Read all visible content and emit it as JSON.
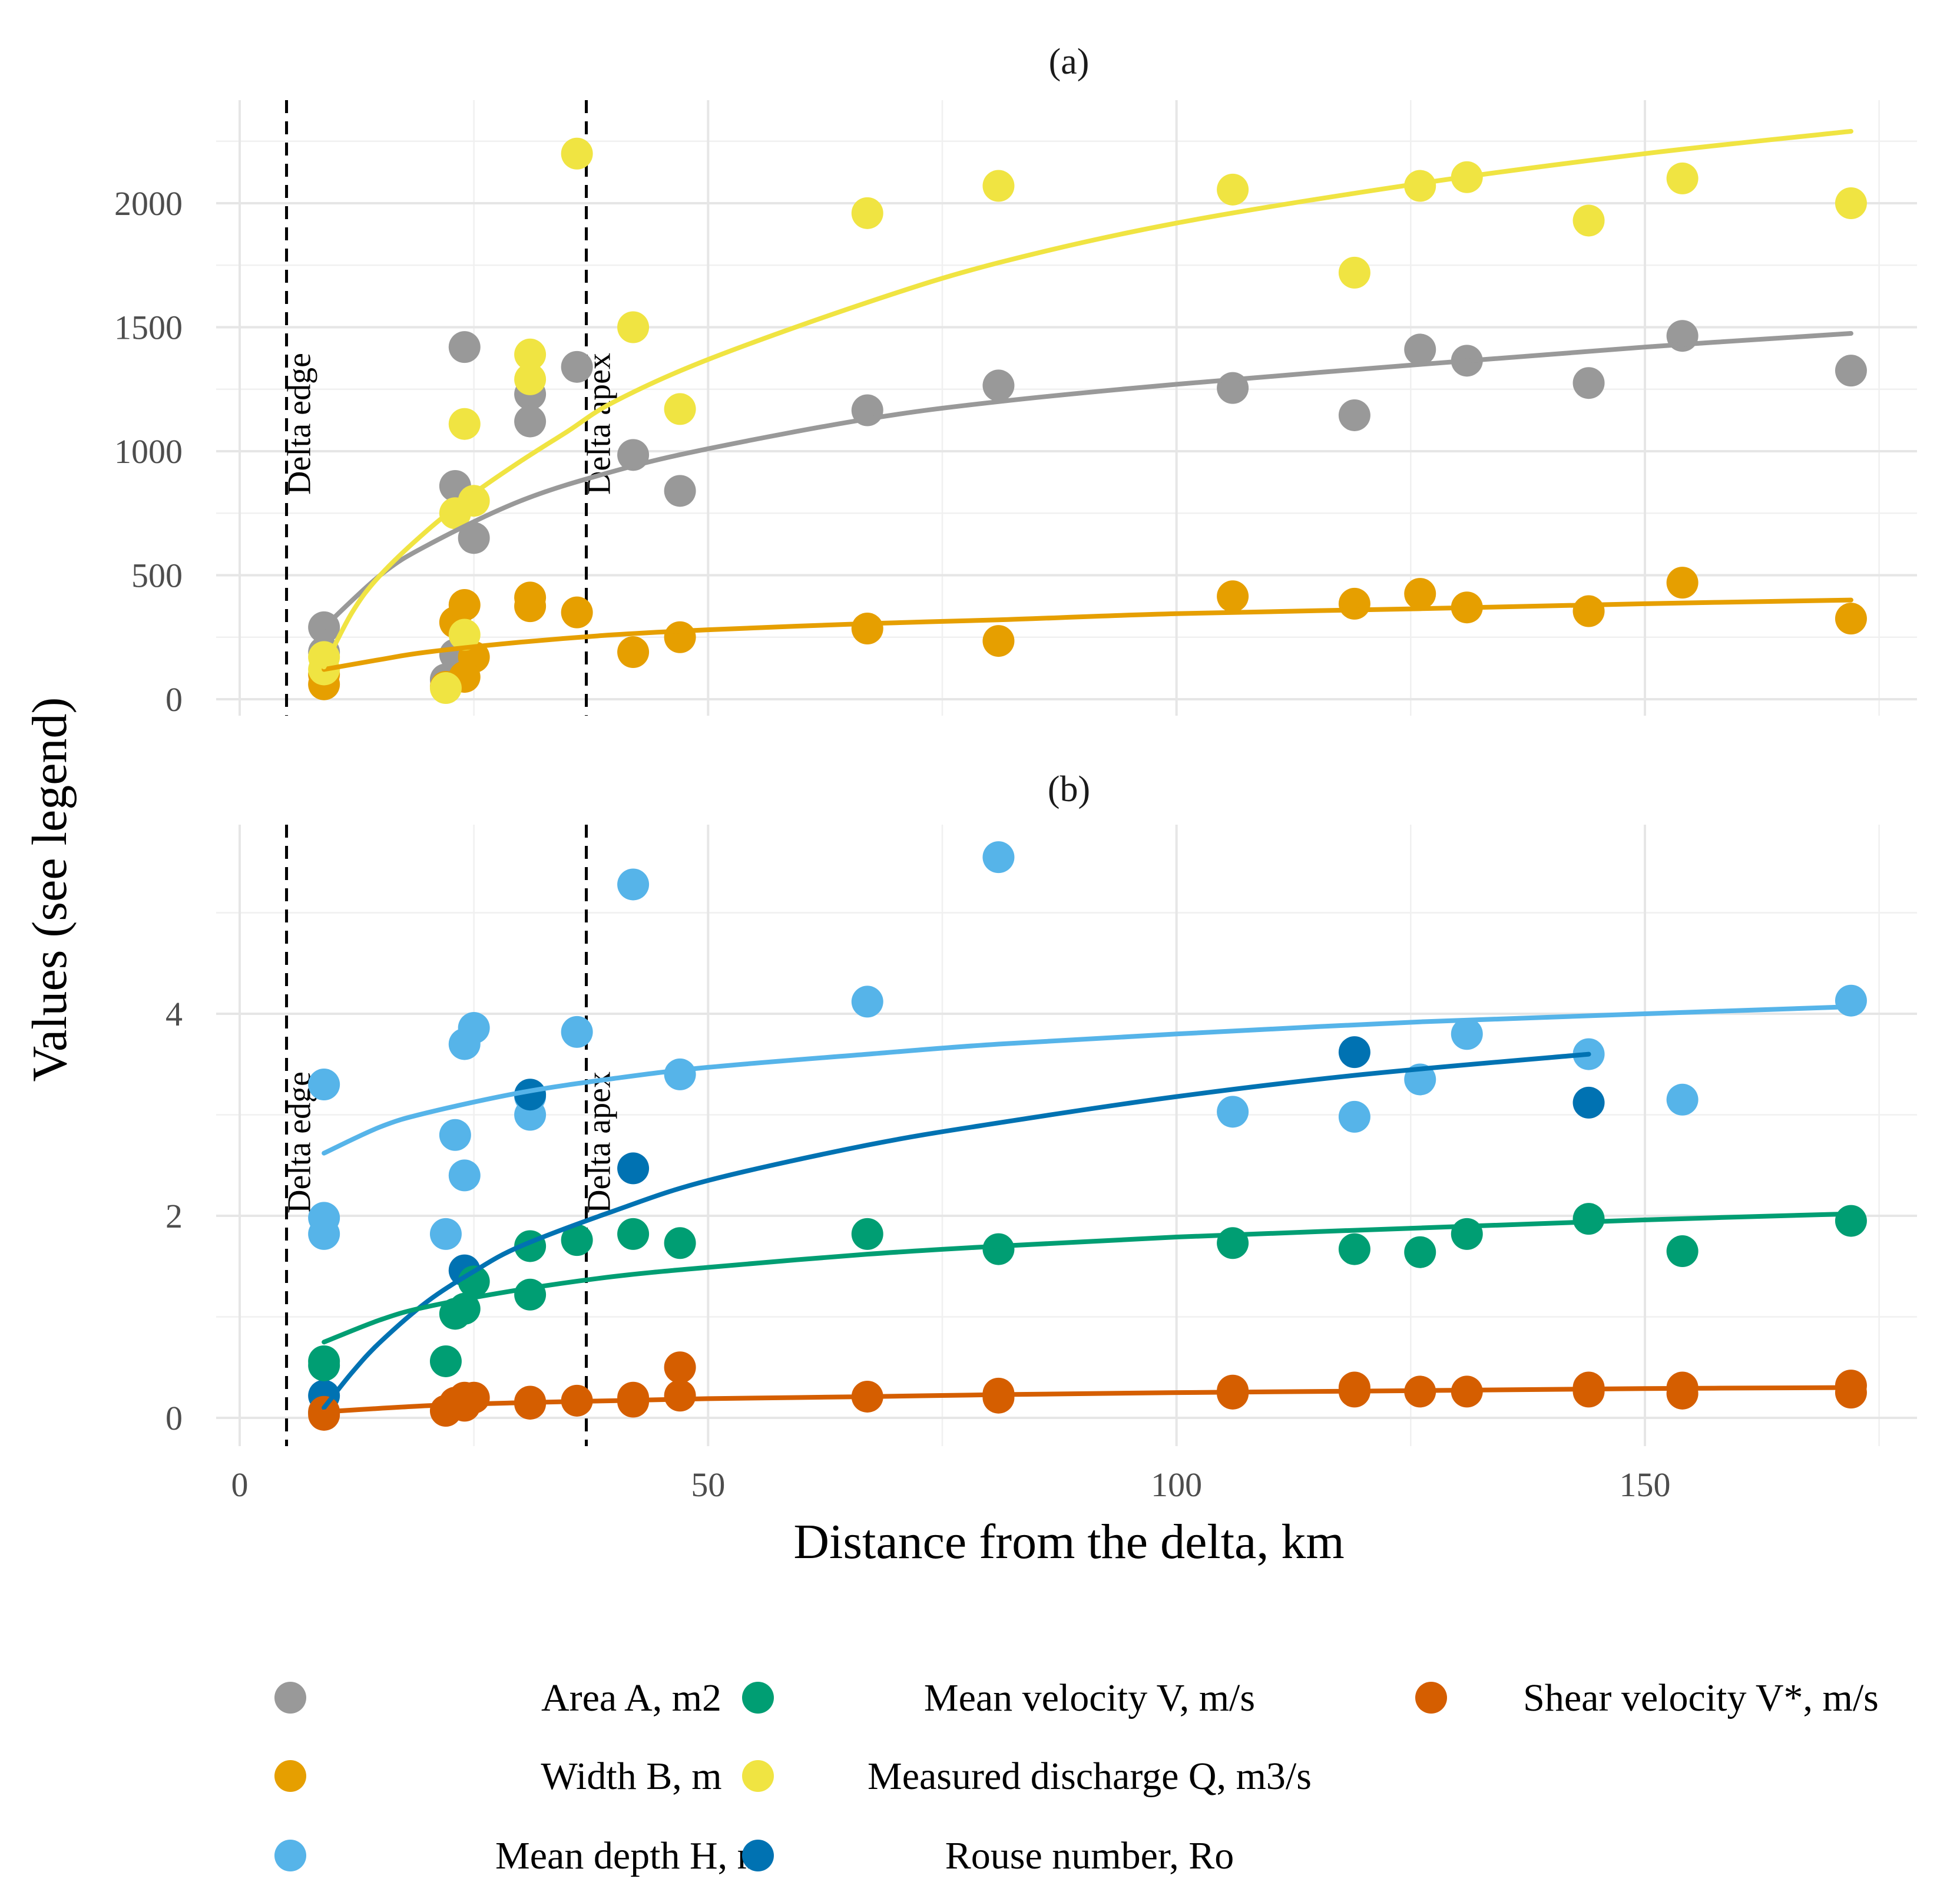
{
  "chart_data": [
    {
      "type": "scatter",
      "panel": "(a)",
      "title": "(a)",
      "xlabel": "Distance from the delta, km",
      "ylabel": "Values (see legend)",
      "xlim": [
        0,
        175
      ],
      "ylim": [
        0,
        2300
      ],
      "xticks": [
        0,
        50,
        100,
        150
      ],
      "yticks": [
        0,
        500,
        1000,
        1500,
        2000
      ],
      "vlines": [
        {
          "x": 5,
          "label": "Delta edge"
        },
        {
          "x": 37,
          "label": "Delta apex"
        }
      ],
      "series": [
        {
          "name": "Area A, m2",
          "color": "#999999",
          "points": [
            [
              9,
              290
            ],
            [
              9,
              190
            ],
            [
              22,
              80
            ],
            [
              23,
              860
            ],
            [
              24,
              1420
            ],
            [
              25,
              650
            ],
            [
              23,
              180
            ],
            [
              31,
              1230
            ],
            [
              31,
              1120
            ],
            [
              36,
              1340
            ],
            [
              42,
              985
            ],
            [
              47,
              840
            ],
            [
              67,
              1165
            ],
            [
              81,
              1265
            ],
            [
              106,
              1255
            ],
            [
              119,
              1145
            ],
            [
              126,
              1410
            ],
            [
              131,
              1365
            ],
            [
              144,
              1275
            ],
            [
              154,
              1465
            ],
            [
              172,
              1325
            ]
          ],
          "fit": [
            [
              9,
              290
            ],
            [
              15,
              500
            ],
            [
              20,
              620
            ],
            [
              30,
              800
            ],
            [
              40,
              920
            ],
            [
              50,
              1010
            ],
            [
              67,
              1130
            ],
            [
              81,
              1200
            ],
            [
              100,
              1270
            ],
            [
              126,
              1350
            ],
            [
              150,
              1420
            ],
            [
              172,
              1475
            ]
          ]
        },
        {
          "name": "Width B, m",
          "color": "#E69F00",
          "points": [
            [
              9,
              60
            ],
            [
              9,
              100
            ],
            [
              22,
              50
            ],
            [
              23,
              310
            ],
            [
              24,
              380
            ],
            [
              25,
              170
            ],
            [
              24,
              90
            ],
            [
              31,
              410
            ],
            [
              31,
              375
            ],
            [
              36,
              350
            ],
            [
              42,
              190
            ],
            [
              47,
              250
            ],
            [
              67,
              285
            ],
            [
              81,
              235
            ],
            [
              106,
              415
            ],
            [
              119,
              385
            ],
            [
              126,
              425
            ],
            [
              131,
              370
            ],
            [
              144,
              355
            ],
            [
              154,
              470
            ],
            [
              172,
              325
            ]
          ],
          "fit": [
            [
              9,
              120
            ],
            [
              15,
              160
            ],
            [
              20,
              190
            ],
            [
              30,
              230
            ],
            [
              40,
              260
            ],
            [
              50,
              280
            ],
            [
              67,
              305
            ],
            [
              81,
              320
            ],
            [
              100,
              345
            ],
            [
              126,
              365
            ],
            [
              150,
              385
            ],
            [
              172,
              400
            ]
          ]
        },
        {
          "name": "Measured discharge Q, m3/s",
          "color": "#F0E442",
          "points": [
            [
              9,
              170
            ],
            [
              9,
              120
            ],
            [
              22,
              45
            ],
            [
              23,
              750
            ],
            [
              24,
              1110
            ],
            [
              25,
              800
            ],
            [
              24,
              260
            ],
            [
              31,
              1390
            ],
            [
              31,
              1290
            ],
            [
              36,
              2200
            ],
            [
              42,
              1500
            ],
            [
              47,
              1170
            ],
            [
              67,
              1960
            ],
            [
              81,
              2070
            ],
            [
              106,
              2055
            ],
            [
              119,
              1720
            ],
            [
              126,
              2070
            ],
            [
              131,
              2105
            ],
            [
              144,
              1930
            ],
            [
              154,
              2100
            ],
            [
              172,
              2000
            ]
          ],
          "fit": [
            [
              9,
              130
            ],
            [
              12,
              350
            ],
            [
              15,
              500
            ],
            [
              20,
              680
            ],
            [
              25,
              830
            ],
            [
              30,
              960
            ],
            [
              35,
              1080
            ],
            [
              40,
              1200
            ],
            [
              50,
              1370
            ],
            [
              67,
              1600
            ],
            [
              81,
              1760
            ],
            [
              100,
              1920
            ],
            [
              126,
              2080
            ],
            [
              150,
              2200
            ],
            [
              172,
              2290
            ]
          ]
        }
      ]
    },
    {
      "type": "scatter",
      "panel": "(b)",
      "title": "(b)",
      "xlabel": "Distance from the delta, km",
      "ylabel": "Values (see legend)",
      "xlim": [
        0,
        175
      ],
      "ylim": [
        -0.2,
        6.0
      ],
      "xticks": [
        0,
        50,
        100,
        150
      ],
      "yticks": [
        0,
        2,
        4
      ],
      "vlines": [
        {
          "x": 5,
          "label": "Delta edge"
        },
        {
          "x": 37,
          "label": "Delta apex"
        }
      ],
      "series": [
        {
          "name": "Mean depth H, m",
          "color": "#56B4E9",
          "points": [
            [
              9,
              3.3
            ],
            [
              9,
              1.98
            ],
            [
              9,
              1.82
            ],
            [
              22,
              1.82
            ],
            [
              23,
              2.8
            ],
            [
              24,
              3.7
            ],
            [
              25,
              3.86
            ],
            [
              24,
              2.4
            ],
            [
              31,
              3.0
            ],
            [
              31,
              3.18
            ],
            [
              36,
              3.82
            ],
            [
              42,
              5.28
            ],
            [
              47,
              3.4
            ],
            [
              67,
              4.12
            ],
            [
              81,
              5.55
            ],
            [
              106,
              3.03
            ],
            [
              119,
              2.98
            ],
            [
              126,
              3.35
            ],
            [
              131,
              3.8
            ],
            [
              144,
              3.6
            ],
            [
              154,
              3.15
            ],
            [
              172,
              4.13
            ]
          ],
          "fit": [
            [
              9,
              2.62
            ],
            [
              15,
              2.88
            ],
            [
              20,
              3.02
            ],
            [
              30,
              3.22
            ],
            [
              40,
              3.36
            ],
            [
              50,
              3.47
            ],
            [
              67,
              3.6
            ],
            [
              81,
              3.7
            ],
            [
              100,
              3.8
            ],
            [
              126,
              3.92
            ],
            [
              150,
              4.0
            ],
            [
              172,
              4.07
            ]
          ]
        },
        {
          "name": "Rouse number, Ro",
          "color": "#0072B2",
          "points": [
            [
              9,
              0.22
            ],
            [
              9,
              0.05
            ],
            [
              24,
              1.46
            ],
            [
              31,
              3.2
            ],
            [
              42,
              2.47
            ],
            [
              119,
              3.62
            ],
            [
              144,
              3.12
            ]
          ],
          "fit": [
            [
              9,
              0.1
            ],
            [
              12,
              0.45
            ],
            [
              15,
              0.75
            ],
            [
              20,
              1.15
            ],
            [
              25,
              1.45
            ],
            [
              30,
              1.7
            ],
            [
              40,
              2.05
            ],
            [
              50,
              2.35
            ],
            [
              67,
              2.7
            ],
            [
              81,
              2.92
            ],
            [
              100,
              3.18
            ],
            [
              120,
              3.4
            ],
            [
              144,
              3.6
            ]
          ]
        },
        {
          "name": "Mean velocity V, m/s",
          "color": "#009E73",
          "points": [
            [
              9,
              0.56
            ],
            [
              9,
              0.52
            ],
            [
              22,
              0.56
            ],
            [
              23,
              1.03
            ],
            [
              24,
              1.08
            ],
            [
              25,
              1.35
            ],
            [
              31,
              1.22
            ],
            [
              31,
              1.7
            ],
            [
              36,
              1.76
            ],
            [
              42,
              1.82
            ],
            [
              47,
              1.73
            ],
            [
              67,
              1.82
            ],
            [
              81,
              1.67
            ],
            [
              106,
              1.73
            ],
            [
              119,
              1.67
            ],
            [
              126,
              1.64
            ],
            [
              131,
              1.82
            ],
            [
              144,
              1.97
            ],
            [
              154,
              1.65
            ],
            [
              172,
              1.95
            ]
          ],
          "fit": [
            [
              9,
              0.75
            ],
            [
              15,
              0.97
            ],
            [
              20,
              1.1
            ],
            [
              30,
              1.27
            ],
            [
              40,
              1.4
            ],
            [
              50,
              1.49
            ],
            [
              67,
              1.62
            ],
            [
              81,
              1.7
            ],
            [
              100,
              1.79
            ],
            [
              126,
              1.88
            ],
            [
              150,
              1.96
            ],
            [
              172,
              2.02
            ]
          ]
        },
        {
          "name": "Shear velocity V*, m/s",
          "color": "#D55E00",
          "points": [
            [
              9,
              0.03
            ],
            [
              9,
              0.06
            ],
            [
              22,
              0.07
            ],
            [
              23,
              0.15
            ],
            [
              24,
              0.2
            ],
            [
              25,
              0.2
            ],
            [
              24,
              0.12
            ],
            [
              31,
              0.16
            ],
            [
              31,
              0.14
            ],
            [
              36,
              0.17
            ],
            [
              42,
              0.2
            ],
            [
              42,
              0.16
            ],
            [
              47,
              0.5
            ],
            [
              47,
              0.22
            ],
            [
              67,
              0.21
            ],
            [
              81,
              0.24
            ],
            [
              81,
              0.2
            ],
            [
              106,
              0.27
            ],
            [
              106,
              0.24
            ],
            [
              119,
              0.3
            ],
            [
              119,
              0.26
            ],
            [
              126,
              0.26
            ],
            [
              131,
              0.26
            ],
            [
              144,
              0.3
            ],
            [
              144,
              0.26
            ],
            [
              154,
              0.3
            ],
            [
              154,
              0.24
            ],
            [
              172,
              0.32
            ],
            [
              172,
              0.25
            ]
          ],
          "fit": [
            [
              9,
              0.06
            ],
            [
              20,
              0.12
            ],
            [
              30,
              0.15
            ],
            [
              40,
              0.17
            ],
            [
              50,
              0.19
            ],
            [
              67,
              0.21
            ],
            [
              81,
              0.23
            ],
            [
              100,
              0.25
            ],
            [
              126,
              0.27
            ],
            [
              150,
              0.29
            ],
            [
              172,
              0.3
            ]
          ]
        }
      ]
    }
  ],
  "legend": {
    "position": "bottom",
    "items": [
      {
        "label": "Area A, m2",
        "color": "#999999"
      },
      {
        "label": "Mean velocity V, m/s",
        "color": "#009E73"
      },
      {
        "label": "Shear velocity V*, m/s",
        "color": "#D55E00"
      },
      {
        "label": "Width B, m",
        "color": "#E69F00"
      },
      {
        "label": "Measured discharge Q, m3/s",
        "color": "#F0E442"
      },
      {
        "label": "Mean depth H, m",
        "color": "#56B4E9"
      },
      {
        "label": "Rouse number, Ro",
        "color": "#0072B2"
      }
    ]
  }
}
